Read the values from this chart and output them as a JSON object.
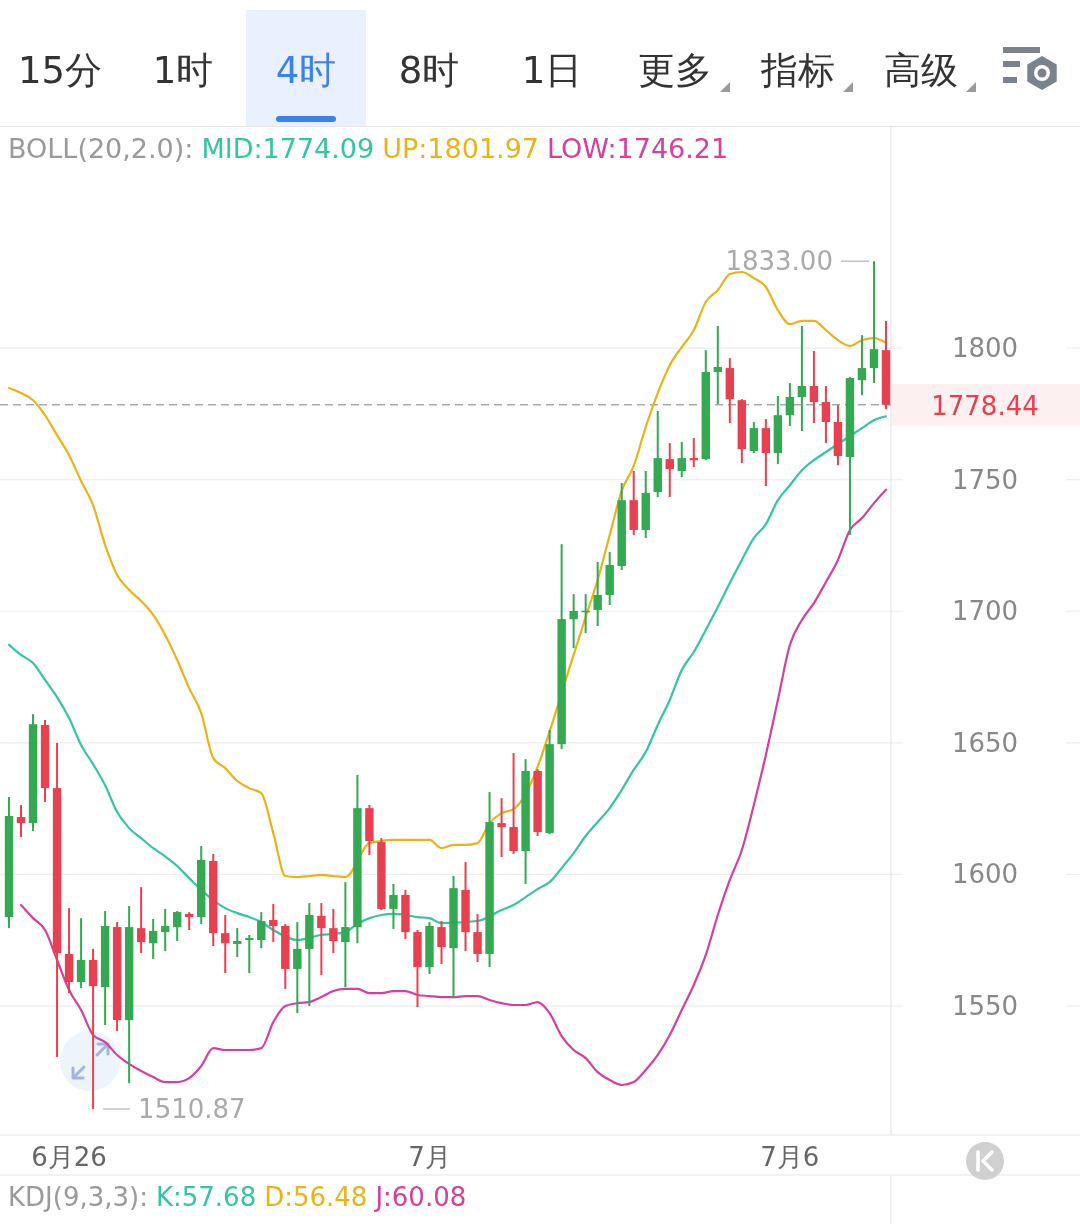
{
  "chart_data": {
    "type": "candlestick",
    "categories": [
      null,
      null,
      null,
      null,
      null,
      "6月26",
      null,
      null,
      null,
      null,
      null,
      null,
      null,
      null,
      null,
      null,
      null,
      null,
      null,
      null,
      null,
      null,
      null,
      null,
      null,
      null,
      null,
      null,
      null,
      null,
      null,
      null,
      null,
      null,
      null,
      "7月",
      null,
      null,
      null,
      null,
      null,
      null,
      null,
      null,
      null,
      null,
      null,
      null,
      null,
      null,
      null,
      null,
      null,
      null,
      null,
      null,
      null,
      null,
      null,
      null,
      null,
      null,
      null,
      null,
      null,
      "7月6",
      null,
      null,
      null,
      null,
      null,
      null,
      null,
      null
    ],
    "ohlc": [
      [
        1583.8,
        1629.4,
        1579.6,
        1622.2
      ],
      [
        1621.8,
        1626.4,
        1614.2,
        1619.5
      ],
      [
        1619.5,
        1660.9,
        1616.5,
        1657.1
      ],
      [
        1656.8,
        1658.7,
        1627.5,
        1632.8
      ],
      [
        1632.8,
        1649.9,
        1530.6,
        1570.1
      ],
      [
        1569.8,
        1587.2,
        1554.9,
        1559.1
      ],
      [
        1559.1,
        1583.4,
        1556.8,
        1567.5
      ],
      [
        1567.5,
        1571.7,
        1510.87,
        1557.6
      ],
      [
        1557.2,
        1586.1,
        1542.8,
        1580.4
      ],
      [
        1580.0,
        1581.9,
        1540.5,
        1544.7
      ],
      [
        1544.7,
        1588.0,
        1520.7,
        1580.0
      ],
      [
        1579.6,
        1595.2,
        1570.1,
        1574.3
      ],
      [
        1573.9,
        1583.1,
        1567.9,
        1578.5
      ],
      [
        1578.1,
        1586.9,
        1570.9,
        1580.4
      ],
      [
        1580.0,
        1586.1,
        1574.7,
        1585.7
      ],
      [
        1585.0,
        1585.7,
        1578.9,
        1583.8
      ],
      [
        1583.8,
        1610.8,
        1581.2,
        1605.5
      ],
      [
        1605.1,
        1607.8,
        1572.8,
        1577.7
      ],
      [
        1577.7,
        1584.6,
        1562.5,
        1573.9
      ],
      [
        1573.6,
        1579.6,
        1568.6,
        1574.7
      ],
      [
        1575.1,
        1577.0,
        1562.5,
        1575.8
      ],
      [
        1575.1,
        1585.7,
        1572.0,
        1582.3
      ],
      [
        1582.7,
        1588.8,
        1574.3,
        1580.4
      ],
      [
        1580.4,
        1581.2,
        1556.5,
        1564.1
      ],
      [
        1564.1,
        1581.9,
        1547.3,
        1571.7
      ],
      [
        1571.7,
        1589.1,
        1550.0,
        1584.6
      ],
      [
        1584.2,
        1589.1,
        1561.8,
        1579.6
      ],
      [
        1579.6,
        1586.9,
        1570.1,
        1574.7
      ],
      [
        1574.3,
        1597.1,
        1557.2,
        1580.0
      ],
      [
        1580.0,
        1637.8,
        1573.9,
        1625.2
      ],
      [
        1625.2,
        1626.4,
        1607.4,
        1612.7
      ],
      [
        1612.3,
        1613.8,
        1586.5,
        1586.9
      ],
      [
        1586.9,
        1596.4,
        1579.3,
        1592.2
      ],
      [
        1592.2,
        1594.1,
        1575.5,
        1578.1
      ],
      [
        1578.1,
        1578.9,
        1549.6,
        1564.8
      ],
      [
        1564.8,
        1581.9,
        1562.2,
        1580.4
      ],
      [
        1580.0,
        1582.3,
        1566.0,
        1572.4
      ],
      [
        1572.0,
        1599.4,
        1553.0,
        1594.8
      ],
      [
        1594.1,
        1604.7,
        1570.9,
        1578.1
      ],
      [
        1578.1,
        1585.0,
        1566.7,
        1569.8
      ],
      [
        1569.8,
        1631.3,
        1564.8,
        1619.9
      ],
      [
        1619.5,
        1629.0,
        1606.6,
        1618.0
      ],
      [
        1618.0,
        1646.1,
        1607.8,
        1608.9
      ],
      [
        1608.9,
        1643.8,
        1596.4,
        1639.3
      ],
      [
        1639.3,
        1640.0,
        1614.6,
        1616.1
      ],
      [
        1615.7,
        1654.9,
        1615.3,
        1649.5
      ],
      [
        1649.5,
        1725.5,
        1647.6,
        1697.0
      ],
      [
        1697.0,
        1706.5,
        1686.0,
        1700.1
      ],
      [
        1699.8,
        1706.5,
        1691.7,
        1700.2
      ],
      [
        1700.5,
        1718.7,
        1694.4,
        1706.2
      ],
      [
        1706.2,
        1722.5,
        1702.4,
        1717.6
      ],
      [
        1717.2,
        1748.7,
        1715.7,
        1742.2
      ],
      [
        1742.2,
        1753.3,
        1729.0,
        1730.9
      ],
      [
        1730.9,
        1753.3,
        1727.8,
        1744.9
      ],
      [
        1745.3,
        1776.1,
        1743.4,
        1758.2
      ],
      [
        1757.8,
        1763.9,
        1743.4,
        1754.0
      ],
      [
        1753.3,
        1764.3,
        1751.0,
        1758.2
      ],
      [
        1758.2,
        1765.8,
        1754.8,
        1757.4
      ],
      [
        1757.8,
        1799.2,
        1757.4,
        1790.9
      ],
      [
        1790.9,
        1808.4,
        1778.7,
        1792.8
      ],
      [
        1792.4,
        1796.2,
        1771.5,
        1780.6
      ],
      [
        1780.2,
        1780.6,
        1756.3,
        1761.6
      ],
      [
        1760.9,
        1771.9,
        1760.1,
        1769.6
      ],
      [
        1769.6,
        1773.0,
        1747.6,
        1760.1
      ],
      [
        1760.1,
        1781.8,
        1755.9,
        1774.5
      ],
      [
        1774.5,
        1786.7,
        1770.4,
        1781.4
      ],
      [
        1781.4,
        1808.4,
        1768.5,
        1785.6
      ],
      [
        1785.6,
        1798.9,
        1771.5,
        1779.5
      ],
      [
        1779.5,
        1785.6,
        1763.9,
        1771.9
      ],
      [
        1771.9,
        1778.3,
        1755.5,
        1759.0
      ],
      [
        1758.6,
        1789.0,
        1729.0,
        1788.6
      ],
      [
        1787.8,
        1804.9,
        1782.1,
        1792.4
      ],
      [
        1792.4,
        1833.0,
        1786.7,
        1799.6
      ],
      [
        1799.2,
        1810.3,
        1776.8,
        1778.44
      ]
    ],
    "colors": [
      "#34a853",
      "#e54150",
      "#34a853",
      "#e54150",
      "#e54150",
      "#e54150",
      "#34a853",
      "#e54150",
      "#34a853",
      "#e54150",
      "#34a853",
      "#e54150",
      "#34a853",
      "#34a853",
      "#34a853",
      "#e54150",
      "#34a853",
      "#e54150",
      "#e54150",
      "#34a853",
      "#34a853",
      "#34a853",
      "#e54150",
      "#e54150",
      "#34a853",
      "#34a853",
      "#e54150",
      "#e54150",
      "#34a853",
      "#34a853",
      "#e54150",
      "#e54150",
      "#34a853",
      "#e54150",
      "#e54150",
      "#34a853",
      "#e54150",
      "#34a853",
      "#e54150",
      "#e54150",
      "#34a853",
      "#e54150",
      "#e54150",
      "#34a853",
      "#e54150",
      "#34a853",
      "#34a853",
      "#34a853",
      "#34a853",
      "#34a853",
      "#34a853",
      "#34a853",
      "#e54150",
      "#34a853",
      "#34a853",
      "#e54150",
      "#34a853",
      "#e54150",
      "#34a853",
      "#34a853",
      "#e54150",
      "#e54150",
      "#34a853",
      "#e54150",
      "#34a853",
      "#34a853",
      "#34a853",
      "#e54150",
      "#e54150",
      "#e54150",
      "#34a853",
      "#34a853",
      "#34a853",
      "#e54150"
    ],
    "series": [
      {
        "name": "MID:1774.09",
        "type": "line",
        "color": "#35c4a4",
        "values": [
          1687.2,
          1683.4,
          1680.3,
          1673.9,
          1667.4,
          1659.4,
          1649.2,
          1641.9,
          1633.9,
          1623.7,
          1617.6,
          1613.8,
          1610.0,
          1606.9,
          1603.2,
          1598.6,
          1594.1,
          null,
          1587.2,
          1585.3,
          1583.8,
          1581.9,
          1578.9,
          null,
          1575.1,
          null,
          1577.0,
          1577.4,
          1578.1,
          1581.2,
          1583.4,
          1584.6,
          1585.0,
          1584.6,
          1583.8,
          1583.4,
          1581.5,
          null,
          null,
          1582.3,
          null,
          1586.5,
          1588.4,
          1591.4,
          1594.4,
          1597.1,
          1602.4,
          1608.1,
          1614.6,
          1619.9,
          1625.2,
          1632.1,
          1639.7,
          1646.5,
          1656.8,
          1666.3,
          1677.7,
          1684.5,
          1692.9,
          1701.6,
          1710.7,
          1719.5,
          1727.8,
          1733.1,
          1742.2,
          1747.9,
          1753.6,
          1757.4,
          1760.5,
          null,
          1766.6,
          1769.6,
          1772.6,
          1774.09
        ]
      },
      {
        "name": "UP:1801.97",
        "type": "line",
        "color": "#e8b418",
        "values": [
          1784.8,
          1782.9,
          1780.2,
          1774.5,
          1766.9,
          1759.3,
          1749.5,
          1740.3,
          1725.2,
          1713.8,
          1708.1,
          1703.9,
          1698.6,
          1691.0,
          1681.5,
          1670.8,
          1661.3,
          1644.2,
          1640.4,
          1635.5,
          1632.8,
          1630.9,
          1615.7,
          1599.4,
          1599.0,
          1599.4,
          1599.8,
          1599.4,
          1599.0,
          null,
          1611.9,
          1612.7,
          1613.1,
          1613.1,
          1613.1,
          1613.1,
          1610.0,
          1611.2,
          1611.2,
          1611.9,
          1619.5,
          1623.3,
          1624.8,
          null,
          null,
          null,
          null,
          1683.4,
          1697.8,
          1711.9,
          1728.9,
          1745.7,
          1755.2,
          1770.0,
          1782.9,
          1793.5,
          1800.4,
          1806.8,
          1817.5,
          1822.0,
          1828.1,
          1828.9,
          1826.6,
          1823.2,
          1814.4,
          1809.1,
          1810.3,
          1810.3,
          1806.8,
          1803.0,
          1800.8,
          1803.0,
          1803.8,
          1801.97
        ]
      },
      {
        "name": "LOW:1746.21",
        "type": "line",
        "color": "#d4409e",
        "values": [
          null,
          1588.4,
          1583.4,
          1578.9,
          1567.5,
          1556.1,
          1548.5,
          1539.0,
          1536.3,
          1531.4,
          1528.0,
          1525.3,
          1523.0,
          1521.1,
          1521.1,
          1522.6,
          1527.2,
          1534.0,
          1533.3,
          1533.3,
          1533.3,
          1534.0,
          1543.9,
          1550.0,
          1551.1,
          1551.5,
          1553.4,
          1555.7,
          1556.5,
          1556.5,
          1554.9,
          1554.9,
          1555.7,
          1555.7,
          1554.2,
          1553.8,
          1553.4,
          1553.4,
          1553.8,
          1553.8,
          1552.3,
          1551.1,
          1550.4,
          1550.4,
          1551.5,
          1547.3,
          1538.6,
          1533.3,
          1530.2,
          1524.9,
          1521.9,
          1520.0,
          1521.1,
          1525.7,
          1531.4,
          1539.0,
          1548.5,
          1558.0,
          1569.4,
          1584.6,
          1597.9,
          1609.3,
          1626.4,
          1645.4,
          1666.3,
          1687.2,
          1696.7,
          1703.1,
          1711.1,
          1719.5,
          1730.9,
          1735.4,
          1741.1,
          1746.21
        ]
      }
    ],
    "legend": "top",
    "legend_title": "BOLL(20,2.0):",
    "ylim": [
      1501,
      1884
    ],
    "yticks": [
      1550,
      1600,
      1650,
      1700,
      1750,
      1800
    ],
    "grid": "y",
    "ref_lines": [
      {
        "axis": "y",
        "value": 1778.44,
        "label": "1778.44",
        "color": "#aaaaaa",
        "line_style": "dashed"
      }
    ],
    "annotations": [
      "15分",
      "1时",
      "4时",
      "8时",
      "1日",
      "更多",
      "指标",
      "高级",
      "1833.00",
      "1510.87",
      "KDJ(9,3,3): K:57.68 D:56.48 J:60.08"
    ]
  }
}
